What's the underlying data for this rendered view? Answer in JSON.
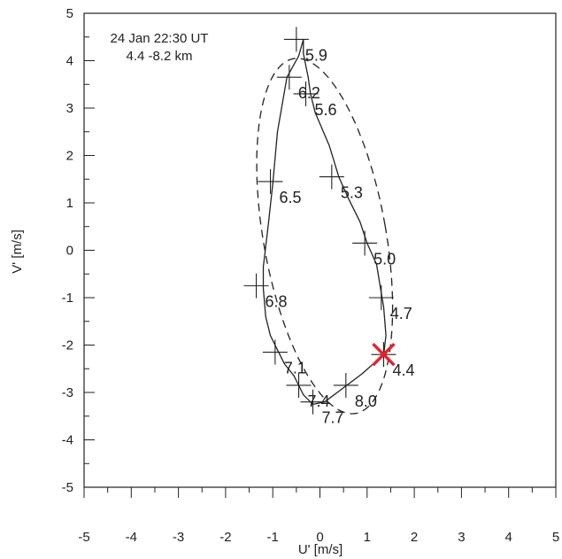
{
  "chart_data": {
    "type": "line",
    "title_lines": [
      "24 Jan 22:30 UT",
      "4.4 -8.2 km"
    ],
    "xlabel": "U' [m/s]",
    "ylabel": "V' [m/s]",
    "xlim": [
      -5,
      5
    ],
    "ylim": [
      -5,
      5
    ],
    "xticks": [
      "-5",
      "-4",
      "-3",
      "-2",
      "-1",
      "0",
      "1",
      "2",
      "3",
      "4",
      "5"
    ],
    "yticks": [
      "-5",
      "-4",
      "-3",
      "-2",
      "-1",
      "0",
      "1",
      "2",
      "3",
      "4",
      "5"
    ],
    "grid": false,
    "series": [
      {
        "style": "solid",
        "x": [
          1.35,
          1.4,
          1.35,
          1.3,
          1.2,
          1.0,
          0.85,
          0.6,
          0.4,
          0.2,
          -0.1,
          -0.2,
          -0.25,
          -0.35,
          -0.35,
          -0.45,
          -0.7,
          -0.9,
          -1.0,
          -1.1,
          -1.2,
          -1.2,
          -1.15,
          -1.05,
          -0.9,
          -0.75,
          -0.55,
          -0.45,
          -0.35,
          -0.15,
          0.1,
          0.5,
          0.9,
          1.35
        ],
        "y": [
          -2.2,
          -1.8,
          -1.2,
          -0.9,
          -0.3,
          0.15,
          0.6,
          1.1,
          1.55,
          2.2,
          2.9,
          3.3,
          3.65,
          4.15,
          4.45,
          4.1,
          3.65,
          2.5,
          1.4,
          0.5,
          -0.35,
          -0.8,
          -1.4,
          -1.8,
          -2.1,
          -2.4,
          -2.65,
          -2.85,
          -3.05,
          -3.25,
          -3.2,
          -2.9,
          -2.6,
          -2.2
        ]
      },
      {
        "style": "dashed",
        "ellipse": {
          "center": [
            0.1,
            0.3
          ],
          "semi_axes": [
            1.3,
            3.8
          ],
          "rotation_deg": 10
        }
      }
    ],
    "markers": [
      {
        "x": -0.5,
        "y": 4.45,
        "label": "5.9"
      },
      {
        "x": -0.3,
        "y": 3.3,
        "label": "5.6"
      },
      {
        "x": -0.65,
        "y": 3.65,
        "label": "6.2"
      },
      {
        "x": 0.25,
        "y": 1.55,
        "label": "5.3"
      },
      {
        "x": 0.95,
        "y": 0.15,
        "label": "5.0"
      },
      {
        "x": 1.3,
        "y": -1.0,
        "label": "4.7"
      },
      {
        "x": -1.05,
        "y": 1.45,
        "label": "6.5"
      },
      {
        "x": -1.35,
        "y": -0.75,
        "label": "6.8"
      },
      {
        "x": -0.95,
        "y": -2.15,
        "label": "7.1"
      },
      {
        "x": -0.45,
        "y": -2.85,
        "label": "7.4"
      },
      {
        "x": 0.55,
        "y": -2.85,
        "label": "8.0"
      },
      {
        "x": -0.15,
        "y": -3.2,
        "label": "7.7"
      },
      {
        "x": 1.35,
        "y": -2.2,
        "label": "4.4",
        "highlight": true
      }
    ],
    "highlight_color": "#e8202a",
    "line_color": "#222222"
  }
}
